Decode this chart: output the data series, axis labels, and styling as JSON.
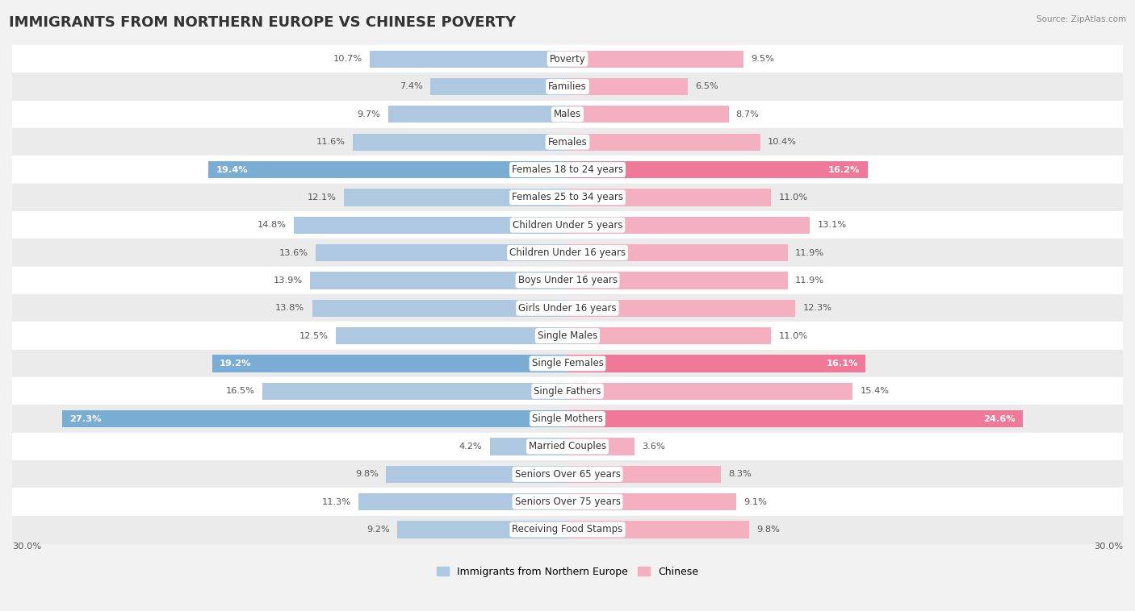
{
  "title": "IMMIGRANTS FROM NORTHERN EUROPE VS CHINESE POVERTY",
  "source": "Source: ZipAtlas.com",
  "categories": [
    "Poverty",
    "Families",
    "Males",
    "Females",
    "Females 18 to 24 years",
    "Females 25 to 34 years",
    "Children Under 5 years",
    "Children Under 16 years",
    "Boys Under 16 years",
    "Girls Under 16 years",
    "Single Males",
    "Single Females",
    "Single Fathers",
    "Single Mothers",
    "Married Couples",
    "Seniors Over 65 years",
    "Seniors Over 75 years",
    "Receiving Food Stamps"
  ],
  "left_values": [
    10.7,
    7.4,
    9.7,
    11.6,
    19.4,
    12.1,
    14.8,
    13.6,
    13.9,
    13.8,
    12.5,
    19.2,
    16.5,
    27.3,
    4.2,
    9.8,
    11.3,
    9.2
  ],
  "right_values": [
    9.5,
    6.5,
    8.7,
    10.4,
    16.2,
    11.0,
    13.1,
    11.9,
    11.9,
    12.3,
    11.0,
    16.1,
    15.4,
    24.6,
    3.6,
    8.3,
    9.1,
    9.8
  ],
  "left_color_normal": "#adc8e0",
  "left_color_highlight": "#7aadd4",
  "right_color_normal": "#f4afc0",
  "right_color_highlight": "#f07898",
  "highlight_indices": [
    4,
    11,
    13
  ],
  "bar_height": 0.62,
  "xlim": 30.0,
  "axis_label": "30.0%",
  "legend_left": "Immigrants from Northern Europe",
  "legend_right": "Chinese",
  "background_color": "#f2f2f2",
  "title_fontsize": 13,
  "label_fontsize": 8.5,
  "value_fontsize": 8.2
}
